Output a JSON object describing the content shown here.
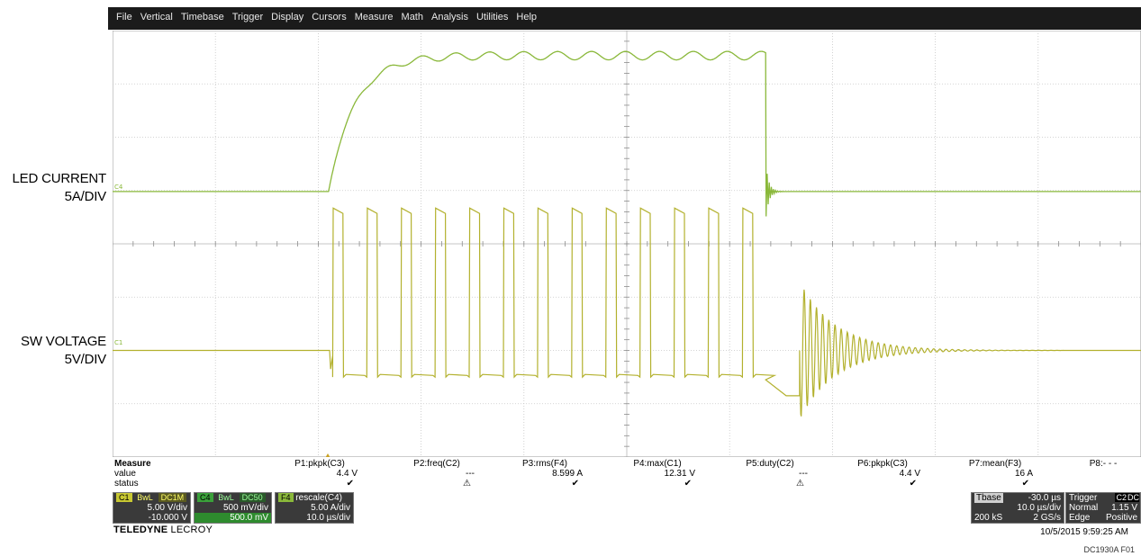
{
  "labels": {
    "led_line1": "LED CURRENT",
    "led_line2": "5A/DIV",
    "sw_line1": "SW VOLTAGE",
    "sw_line2": "5V/DIV"
  },
  "menu": [
    "File",
    "Vertical",
    "Timebase",
    "Trigger",
    "Display",
    "Cursors",
    "Measure",
    "Math",
    "Analysis",
    "Utilities",
    "Help"
  ],
  "trace_tags": {
    "c4": "C4",
    "c1": "C1"
  },
  "measure": {
    "title": "Measure",
    "row_value": "value",
    "row_status": "status",
    "params": [
      {
        "name": "P1:pkpk(C3)",
        "value": "4.4 V",
        "status": "✔"
      },
      {
        "name": "P2:freq(C2)",
        "value": "---",
        "status": "⚠"
      },
      {
        "name": "P3:rms(F4)",
        "value": "8.599 A",
        "status": "✔"
      },
      {
        "name": "P4:max(C1)",
        "value": "12.31 V",
        "status": "✔"
      },
      {
        "name": "P5:duty(C2)",
        "value": "---",
        "status": "⚠"
      },
      {
        "name": "P6:pkpk(C3)",
        "value": "4.4 V",
        "status": "✔"
      },
      {
        "name": "P7:mean(F3)",
        "value": "16 A",
        "status": "✔"
      },
      {
        "name": "P8:- - -",
        "value": "",
        "status": ""
      }
    ]
  },
  "channels": {
    "c1": {
      "tag": "C1",
      "bw": "BwL",
      "coupling": "DC1M",
      "vdiv": "5.00 V/div",
      "offset": "-10.000 V"
    },
    "c4": {
      "tag": "C4",
      "bw": "BwL",
      "coupling": "DC50",
      "vdiv": "500 mV/div",
      "offset": "500.0 mV"
    },
    "f4": {
      "tag": "F4",
      "func": "rescale(C4)",
      "vdiv": "5.00 A/div",
      "tdiv": "10.0 µs/div"
    }
  },
  "timebase": {
    "label": "Tbase",
    "delay": "-30.0 µs",
    "tdiv": "10.0 µs/div",
    "samples": "200 kS",
    "rate": "2 GS/s"
  },
  "trigger": {
    "label": "Trigger",
    "src": "C2",
    "coupling": "DC",
    "mode": "Normal",
    "level": "1.15 V",
    "type": "Edge",
    "slope": "Positive"
  },
  "brand": {
    "name": "TELEDYNE",
    "suffix": "LECROY"
  },
  "datestamp": "10/5/2015 9:59:25 AM",
  "figure_id": "DC1930A F01",
  "colors": {
    "trace": "#8ab83a",
    "grid": "#bdbdbd",
    "menubar": "#1b1b1b",
    "c1_tag": "#c8c832",
    "c4_tag": "#3aa03a"
  }
}
